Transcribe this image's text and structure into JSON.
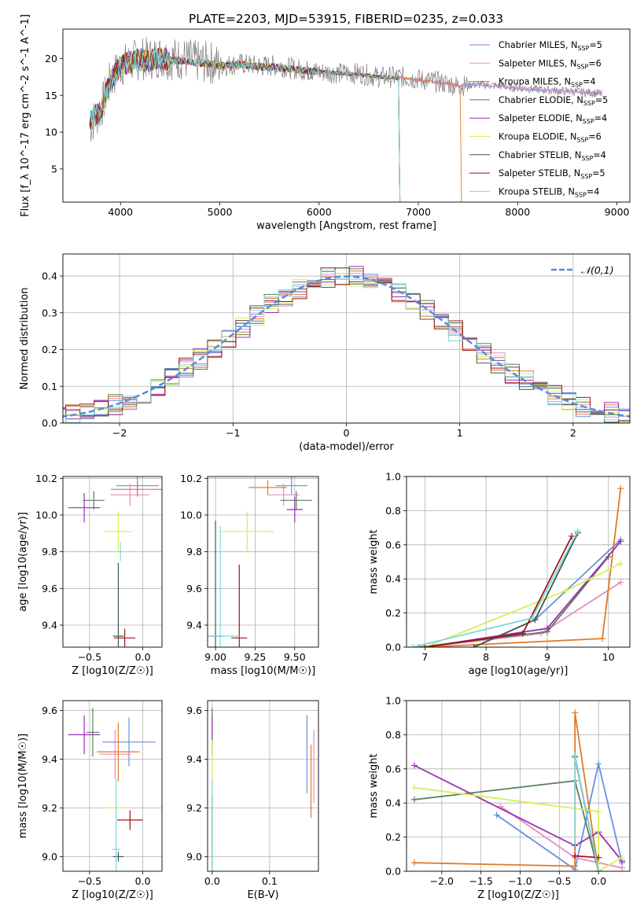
{
  "figure_title": "PLATE=2203, MJD=53915, FIBERID=0235, z=0.033",
  "series_styles": [
    {
      "name": "Chabrier MILES, N_SSP=5",
      "color": "#6a8fe0"
    },
    {
      "name": "Salpeter MILES, N_SSP=6",
      "color": "#e88cc1"
    },
    {
      "name": "Kroupa MILES, N_SSP=4",
      "color": "#e07b28"
    },
    {
      "name": "Chabrier ELODIE, N_SSP=5",
      "color": "#5a7d5a"
    },
    {
      "name": "Salpeter ELODIE, N_SSP=4",
      "color": "#9a2fb3"
    },
    {
      "name": "Kroupa ELODIE, N_SSP=6",
      "color": "#d6ef5a"
    },
    {
      "name": "Chabrier STELIB, N_SSP=4",
      "color": "#3d5a4a"
    },
    {
      "name": "Salpeter STELIB, N_SSP=5",
      "color": "#a01414"
    },
    {
      "name": "Kroupa STELIB, N_SSP=4",
      "color": "#7fd7e0"
    }
  ],
  "chart_data": [
    {
      "id": "spectrum",
      "type": "line",
      "title": "PLATE=2203, MJD=53915, FIBERID=0235, z=0.033",
      "xlabel": "wavelength [Angstrom, rest frame]",
      "ylabel": "Flux [f_λ 10^-17 erg cm^-2 s^-1 A^-1]",
      "xlim": [
        3420,
        9130
      ],
      "ylim": [
        0.5,
        24
      ],
      "xticks": [
        4000,
        5000,
        6000,
        7000,
        8000,
        9000
      ],
      "yticks": [
        5,
        10,
        15,
        20
      ],
      "legend": "top-right",
      "data_observed": {
        "name": "data",
        "color": "#808080",
        "x": [
          3700,
          3800,
          3900,
          4000,
          4100,
          4200,
          4300,
          4400,
          4500,
          4600,
          4700,
          4800,
          4900,
          5000,
          5200,
          5400,
          5600,
          5800,
          6000,
          6200,
          6400,
          6600,
          6800,
          7000,
          7200,
          7400,
          7600,
          7800,
          8000,
          8200,
          8400,
          8600,
          8800,
          8850
        ],
        "y": [
          11,
          13,
          17,
          19,
          19.5,
          20,
          20,
          20.3,
          20,
          20,
          19.8,
          19.5,
          19.5,
          19,
          19.3,
          19,
          19,
          18.5,
          18.2,
          18,
          18,
          17.5,
          17.5,
          17.2,
          16.8,
          16.3,
          16.5,
          16.3,
          16,
          15.8,
          15.6,
          15.5,
          15.3,
          15.2
        ]
      },
      "model_curve": {
        "x": [
          3700,
          3800,
          3900,
          4000,
          4100,
          4200,
          4300,
          4400,
          4500,
          4600,
          4700,
          4800,
          4900,
          5000,
          5200,
          5400,
          5600,
          5800,
          6000,
          6200,
          6400,
          6600,
          6800,
          7000,
          7200,
          7400,
          7600,
          7800,
          8000,
          8200,
          8400,
          8600,
          8800,
          8850
        ],
        "y": [
          11.5,
          13,
          17,
          19,
          19.5,
          19.8,
          19.7,
          20,
          19.8,
          19.7,
          19.6,
          19.4,
          19.3,
          19,
          19.2,
          18.9,
          18.8,
          18.4,
          18.2,
          18,
          17.8,
          17.5,
          17.4,
          17.1,
          16.8,
          16.3,
          16.5,
          16.2,
          16,
          15.8,
          15.6,
          15.5,
          15.3,
          15.2
        ]
      },
      "model_end_x": [
        8850,
        8850,
        7420,
        6800,
        6800,
        6800,
        6800,
        6800,
        6800
      ]
    },
    {
      "id": "residual_hist",
      "type": "bar",
      "xlabel": "(data-model)/error",
      "ylabel": "Normed distribution",
      "xlim": [
        -2.5,
        2.5
      ],
      "ylim": [
        0,
        0.46
      ],
      "xticks": [
        -2,
        -1,
        0,
        1,
        2
      ],
      "yticks": [
        0.0,
        0.1,
        0.2,
        0.3,
        0.4
      ],
      "legend": "top-right",
      "reference_curve": {
        "name": "𝒩(0,1)",
        "mu": 0,
        "sigma": 1,
        "color": "#5b8bd9"
      }
    },
    {
      "id": "age_vs_Z",
      "type": "scatter",
      "xlabel": "Z [log10(Z/Z☉)]",
      "ylabel": "age [log10(age/yr)]",
      "xlim": [
        -0.75,
        0.18
      ],
      "ylim": [
        9.28,
        10.21
      ],
      "xticks": [
        -0.5,
        0.0
      ],
      "yticks": [
        9.4,
        9.6,
        9.8,
        10.0,
        10.2
      ],
      "points": [
        {
          "x": -0.05,
          "y": 10.16,
          "xerr": 0.2,
          "yerr": 0.05
        },
        {
          "x": -0.12,
          "y": 10.11,
          "xerr": 0.18,
          "yerr": 0.06
        },
        {
          "x": -0.05,
          "y": 10.14,
          "xerr": 0.25,
          "yerr": 0.04
        },
        {
          "x": -0.46,
          "y": 10.08,
          "xerr": 0.1,
          "yerr": 0.05
        },
        {
          "x": -0.55,
          "y": 10.04,
          "xerr": 0.15,
          "yerr": 0.08
        },
        {
          "x": -0.23,
          "y": 9.91,
          "xerr": 0.13,
          "yerr": 0.11
        },
        {
          "x": -0.23,
          "y": 9.34,
          "xerr": 0.05,
          "yerr": 0.4
        },
        {
          "x": -0.17,
          "y": 9.33,
          "xerr": 0.1,
          "yerr": 0.05
        },
        {
          "x": -0.21,
          "y": 9.8,
          "xerr": 0.02,
          "yerr": 0.05
        }
      ]
    },
    {
      "id": "age_vs_mass",
      "type": "scatter",
      "xlabel": "mass [log10(M/M☉)]",
      "ylabel": "",
      "xlim": [
        8.95,
        9.65
      ],
      "ylim": [
        9.28,
        10.21
      ],
      "xticks": [
        9.0,
        9.25,
        9.5
      ],
      "yticks": [
        9.4,
        9.6,
        9.8,
        10.0,
        10.2
      ],
      "points": [
        {
          "x": 9.48,
          "y": 10.16,
          "xerr": 0.1,
          "yerr": 0.05
        },
        {
          "x": 9.43,
          "y": 10.11,
          "xerr": 0.1,
          "yerr": 0.06
        },
        {
          "x": 9.33,
          "y": 10.15,
          "xerr": 0.12,
          "yerr": 0.04
        },
        {
          "x": 9.51,
          "y": 10.08,
          "xerr": 0.1,
          "yerr": 0.05
        },
        {
          "x": 9.5,
          "y": 10.03,
          "xerr": 0.05,
          "yerr": 0.07
        },
        {
          "x": 9.2,
          "y": 9.91,
          "xerr": 0.17,
          "yerr": 0.11
        },
        {
          "x": 9.0,
          "y": 9.34,
          "xerr": 0.05,
          "yerr": 0.63
        },
        {
          "x": 9.15,
          "y": 9.33,
          "xerr": 0.05,
          "yerr": 0.4
        },
        {
          "x": 9.03,
          "y": 9.34,
          "xerr": 0.12,
          "yerr": 0.6
        }
      ]
    },
    {
      "id": "mass_weight_vs_age",
      "type": "line",
      "xlabel": "age [log10(age/yr)]",
      "ylabel": "mass weight",
      "xlim": [
        6.7,
        10.35
      ],
      "ylim": [
        0,
        1
      ],
      "xticks": [
        7,
        8,
        9,
        10
      ],
      "yticks": [
        0.0,
        0.2,
        0.4,
        0.6,
        0.8,
        1.0
      ],
      "series": [
        {
          "x": [
            7.8,
            8.8,
            10.2
          ],
          "y": [
            0.0,
            0.16,
            0.63
          ]
        },
        {
          "x": [
            7.0,
            8.9,
            10.2
          ],
          "y": [
            0.0,
            0.08,
            0.38
          ]
        },
        {
          "x": [
            7.0,
            9.9,
            10.2
          ],
          "y": [
            0.0,
            0.05,
            0.93
          ]
        },
        {
          "x": [
            6.9,
            9.0,
            10.0
          ],
          "y": [
            0.0,
            0.09,
            0.53
          ]
        },
        {
          "x": [
            7.0,
            9.0,
            10.2
          ],
          "y": [
            0.0,
            0.11,
            0.62
          ]
        },
        {
          "x": [
            7.0,
            9.3,
            10.2
          ],
          "y": [
            0.0,
            0.33,
            0.49
          ]
        },
        {
          "x": [
            7.8,
            8.8,
            9.5
          ],
          "y": [
            0.0,
            0.16,
            0.67
          ]
        },
        {
          "x": [
            7.0,
            8.6,
            9.4
          ],
          "y": [
            0.0,
            0.08,
            0.65
          ]
        },
        {
          "x": [
            6.8,
            8.75,
            9.5
          ],
          "y": [
            0.0,
            0.17,
            0.68
          ]
        }
      ]
    },
    {
      "id": "mass_vs_Z",
      "type": "scatter",
      "xlabel": "Z [log10(Z/Z☉)]",
      "ylabel": "mass [log10(M/M☉)]",
      "xlim": [
        -0.75,
        0.18
      ],
      "ylim": [
        8.94,
        9.64
      ],
      "xticks": [
        -0.5,
        0.0
      ],
      "yticks": [
        9.0,
        9.2,
        9.4,
        9.6
      ],
      "points": [
        {
          "x": -0.13,
          "y": 9.47,
          "xerr": 0.25,
          "yerr": 0.1
        },
        {
          "x": -0.26,
          "y": 9.42,
          "xerr": 0.15,
          "yerr": 0.1
        },
        {
          "x": -0.23,
          "y": 9.43,
          "xerr": 0.2,
          "yerr": 0.12
        },
        {
          "x": -0.47,
          "y": 9.51,
          "xerr": 0.06,
          "yerr": 0.1
        },
        {
          "x": -0.55,
          "y": 9.5,
          "xerr": 0.15,
          "yerr": 0.08
        },
        {
          "x": -0.25,
          "y": 9.2,
          "xerr": 0.1,
          "yerr": 0.05
        },
        {
          "x": -0.23,
          "y": 9.0,
          "xerr": 0.05,
          "yerr": 0.02
        },
        {
          "x": -0.12,
          "y": 9.15,
          "xerr": 0.12,
          "yerr": 0.04
        },
        {
          "x": -0.25,
          "y": 9.03,
          "xerr": 0.04,
          "yerr": 0.29
        }
      ]
    },
    {
      "id": "mass_vs_EBV",
      "type": "scatter",
      "xlabel": "E(B-V)",
      "ylabel": "",
      "xlim": [
        -0.008,
        0.185
      ],
      "ylim": [
        8.94,
        9.64
      ],
      "xticks": [
        0.0,
        0.1
      ],
      "yticks": [
        9.0,
        9.2,
        9.4,
        9.6
      ],
      "points": [
        {
          "x": 0.165,
          "y": 9.42,
          "xerr": 0,
          "yerr": 0.16
        },
        {
          "x": 0.177,
          "y": 9.37,
          "xerr": 0,
          "yerr": 0.15
        },
        {
          "x": 0.172,
          "y": 9.31,
          "xerr": 0,
          "yerr": 0.15
        },
        {
          "x": 0.0,
          "y": 9.51,
          "xerr": 0,
          "yerr": 0.1
        },
        {
          "x": 0.0,
          "y": 9.5,
          "xerr": 0,
          "yerr": 0.08
        },
        {
          "x": 0.0,
          "y": 9.2,
          "xerr": 0,
          "yerr": 0.28
        },
        {
          "x": 0.0,
          "y": 9.0,
          "xerr": 0,
          "yerr": 0.05
        },
        {
          "x": 0.0,
          "y": 9.15,
          "xerr": 0,
          "yerr": 0.1
        },
        {
          "x": 0.0,
          "y": 9.03,
          "xerr": 0,
          "yerr": 0.29
        }
      ]
    },
    {
      "id": "mass_weight_vs_Z",
      "type": "line",
      "xlabel": "Z [log10(Z/Z☉)]",
      "ylabel": "mass weight",
      "xlim": [
        -2.45,
        0.4
      ],
      "ylim": [
        0,
        1
      ],
      "xticks": [
        -2.0,
        -1.5,
        -1.0,
        -0.5,
        0.0
      ],
      "yticks": [
        0.0,
        0.2,
        0.4,
        0.6,
        0.8,
        1.0
      ],
      "series": [
        {
          "x": [
            -1.3,
            -0.3,
            0.0,
            0.3
          ],
          "y": [
            0.33,
            0.01,
            0.63,
            0.05
          ]
        },
        {
          "x": [
            -1.25,
            -0.3,
            0.3
          ],
          "y": [
            0.38,
            0.08,
            0.02
          ]
        },
        {
          "x": [
            -2.35,
            -0.3,
            -0.3,
            0.0
          ],
          "y": [
            0.05,
            0.03,
            0.93,
            0.0
          ]
        },
        {
          "x": [
            -2.35,
            -0.3,
            0.0
          ],
          "y": [
            0.42,
            0.53,
            0.0
          ]
        },
        {
          "x": [
            -2.35,
            -0.3,
            0.0,
            0.3
          ],
          "y": [
            0.62,
            0.15,
            0.23,
            0.06
          ]
        },
        {
          "x": [
            -2.35,
            0.0,
            0.0,
            0.3
          ],
          "y": [
            0.49,
            0.35,
            0.0,
            0.08
          ]
        },
        {
          "x": [
            -0.3,
            0.0
          ],
          "y": [
            0.67,
            0.0
          ]
        },
        {
          "x": [
            -0.3,
            0.0
          ],
          "y": [
            0.09,
            0.08
          ]
        },
        {
          "x": [
            -0.3,
            -0.3,
            0.0
          ],
          "y": [
            0.16,
            0.68,
            0.0
          ]
        }
      ]
    }
  ]
}
